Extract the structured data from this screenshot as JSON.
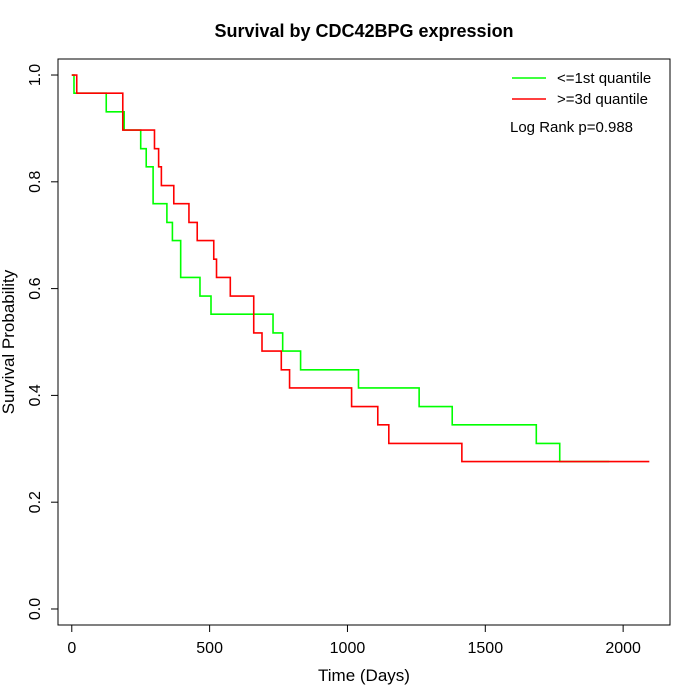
{
  "chart_data": {
    "type": "line",
    "title": "Survival by CDC42BPG expression",
    "xlabel": "Time (Days)",
    "ylabel": "Survival Probability",
    "xlim": [
      -50,
      2170
    ],
    "ylim": [
      -0.03,
      1.03
    ],
    "xticks": [
      0,
      500,
      1000,
      1500,
      2000
    ],
    "yticks": [
      0.0,
      0.2,
      0.4,
      0.6,
      0.8,
      1.0
    ],
    "xtick_labels": [
      "0",
      "500",
      "1000",
      "1500",
      "2000"
    ],
    "ytick_labels": [
      "0.0",
      "0.2",
      "0.4",
      "0.6",
      "0.8",
      "1.0"
    ],
    "grid": false,
    "legend_position": "top-right",
    "annotation": "Log Rank p=0.988",
    "series": [
      {
        "name": "<=1st quantile",
        "color": "#00ff00",
        "step": true,
        "x": [
          0,
          8,
          125,
          190,
          250,
          270,
          295,
          345,
          365,
          395,
          465,
          505,
          730,
          765,
          830,
          1040,
          1260,
          1380,
          1685,
          1770,
          1950
        ],
        "y": [
          1.0,
          0.966,
          0.931,
          0.897,
          0.862,
          0.828,
          0.759,
          0.724,
          0.69,
          0.621,
          0.586,
          0.552,
          0.517,
          0.483,
          0.448,
          0.414,
          0.379,
          0.345,
          0.31,
          0.276,
          0.276
        ]
      },
      {
        "name": ">=3d quantile",
        "color": "#ff0000",
        "step": true,
        "x": [
          0,
          18,
          185,
          300,
          315,
          325,
          370,
          425,
          455,
          515,
          525,
          575,
          660,
          690,
          760,
          790,
          1015,
          1110,
          1150,
          1415,
          2095
        ],
        "y": [
          1.0,
          0.966,
          0.897,
          0.862,
          0.828,
          0.793,
          0.759,
          0.724,
          0.69,
          0.655,
          0.621,
          0.586,
          0.517,
          0.483,
          0.448,
          0.414,
          0.379,
          0.345,
          0.31,
          0.276,
          0.276
        ]
      }
    ]
  }
}
